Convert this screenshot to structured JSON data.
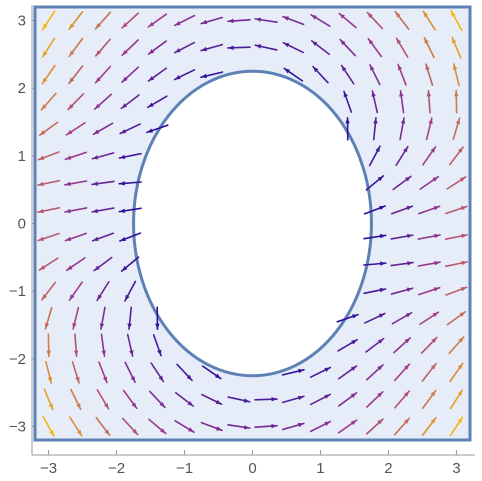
{
  "chart_data": {
    "type": "vector-field",
    "title": "",
    "xlabel": "",
    "ylabel": "",
    "xlim": [
      -3.2,
      3.2
    ],
    "ylim": [
      -3.2,
      3.2
    ],
    "x_ticks": [
      -3,
      -2,
      -1,
      0,
      1,
      2,
      3
    ],
    "y_ticks": [
      -3,
      -2,
      -1,
      0,
      1,
      2,
      3
    ],
    "x_tick_labels": [
      "−3",
      "−2",
      "−1",
      "0",
      "1",
      "2",
      "3"
    ],
    "y_tick_labels": [
      "−3",
      "−2",
      "−1",
      "0",
      "1",
      "2",
      "3"
    ],
    "grid": false,
    "legend": "none",
    "field": {
      "description_formula": "a circulating field around an elliptical hole",
      "u": "-y",
      "v": "x",
      "magnitude_scale_note": "arrow colour encodes magnitude from dark blue (low) to yellow (high)"
    },
    "region": {
      "shape": "square-minus-ellipse",
      "square": {
        "xmin": -3.2,
        "xmax": 3.2,
        "ymin": -3.2,
        "ymax": 3.2
      },
      "ellipse": {
        "cx": 0,
        "cy": 0,
        "rx": 1.75,
        "ry": 2.25
      }
    },
    "grid_spacing": 0.4,
    "colors": {
      "region_fill": "#e6edf8",
      "region_border": "#5e81b5",
      "low": "#2a0f9c",
      "mid": "#a33c8c",
      "high": "#f6b50e"
    }
  }
}
